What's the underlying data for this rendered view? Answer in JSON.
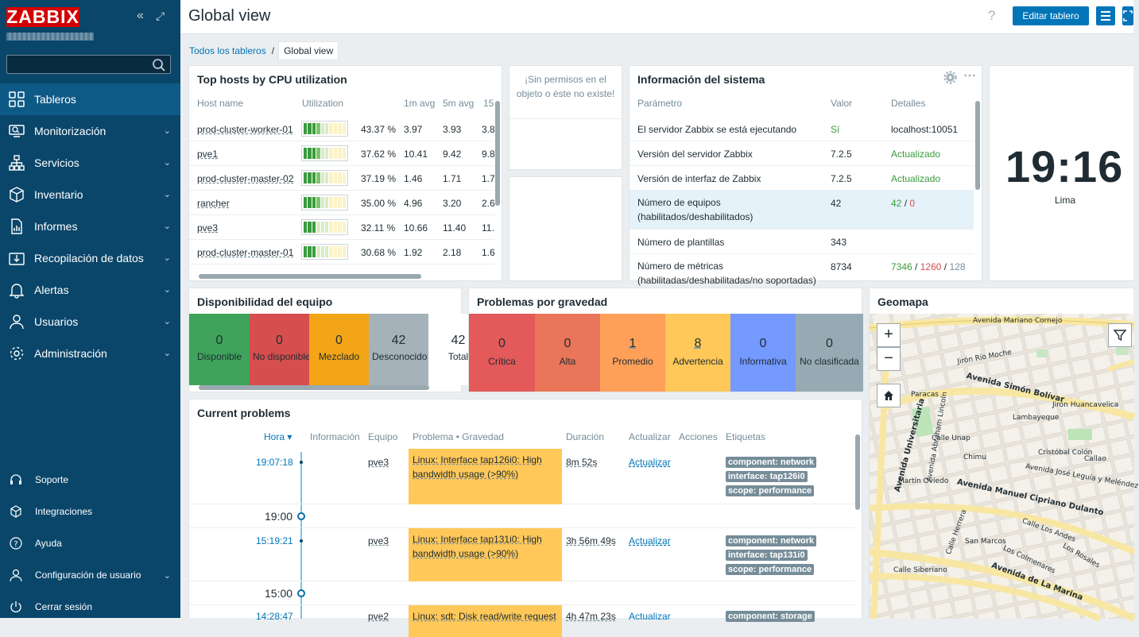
{
  "app": {
    "logo": "ZABBIX"
  },
  "sidebar": {
    "search": {
      "placeholder": ""
    },
    "menu": [
      {
        "label": "Tableros",
        "icon": "dashboard-icon",
        "active": true
      },
      {
        "label": "Monitorización",
        "icon": "monitoring-icon"
      },
      {
        "label": "Servicios",
        "icon": "services-icon"
      },
      {
        "label": "Inventario",
        "icon": "inventory-icon"
      },
      {
        "label": "Informes",
        "icon": "reports-icon"
      },
      {
        "label": "Recopilación de datos",
        "icon": "data-collection-icon"
      },
      {
        "label": "Alertas",
        "icon": "bell-icon"
      },
      {
        "label": "Usuarios",
        "icon": "users-icon"
      },
      {
        "label": "Administración",
        "icon": "gear-icon"
      }
    ],
    "bottom": [
      {
        "label": "Soporte",
        "icon": "headset-icon"
      },
      {
        "label": "Integraciones",
        "icon": "integrations-icon"
      },
      {
        "label": "Ayuda",
        "icon": "help-icon"
      },
      {
        "label": "Configuración de usuario",
        "icon": "user-icon"
      },
      {
        "label": "Cerrar sesión",
        "icon": "power-icon"
      }
    ]
  },
  "header": {
    "title": "Global view",
    "help": "?",
    "edit_button": "Editar tablero"
  },
  "breadcrumb": {
    "parent": "Todos los tableros",
    "separator": "/",
    "current": "Global view"
  },
  "top_hosts": {
    "title": "Top hosts by CPU utilization",
    "columns": [
      "Host name",
      "Utilization",
      "1m avg",
      "5m avg",
      "15"
    ],
    "rows": [
      {
        "host": "prod-cluster-worker-01",
        "util": "43.37 %",
        "util_value": 43.37,
        "avg1": "3.97",
        "avg5": "3.93",
        "avg15": "3.8"
      },
      {
        "host": "pve1",
        "util": "37.62 %",
        "util_value": 37.62,
        "avg1": "10.41",
        "avg5": "9.42",
        "avg15": "9.8"
      },
      {
        "host": "prod-cluster-master-02",
        "util": "37.19 %",
        "util_value": 37.19,
        "avg1": "1.46",
        "avg5": "1.71",
        "avg15": "1.7"
      },
      {
        "host": "rancher",
        "util": "35.00 %",
        "util_value": 35.0,
        "avg1": "4.96",
        "avg5": "3.20",
        "avg15": "2.6"
      },
      {
        "host": "pve3",
        "util": "32.11 %",
        "util_value": 32.11,
        "avg1": "10.66",
        "avg5": "11.40",
        "avg15": "11."
      },
      {
        "host": "prod-cluster-master-01",
        "util": "30.68 %",
        "util_value": 30.68,
        "avg1": "1.92",
        "avg5": "2.18",
        "avg15": "1.6"
      }
    ]
  },
  "no_permission": {
    "message": "¡Sin permisos en el objeto o éste no existe!"
  },
  "system_info": {
    "title": "Información del sistema",
    "columns": [
      "Parámetro",
      "Valor",
      "Detalles"
    ],
    "rows": [
      {
        "param": "El servidor Zabbix se está ejecutando",
        "value": "Sí",
        "details": "localhost:10051"
      },
      {
        "param": "Versión del servidor Zabbix",
        "value": "7.2.5",
        "details": "Actualizado"
      },
      {
        "param": "Versión de interfaz de Zabbix",
        "value": "7.2.5",
        "details": "Actualizado"
      },
      {
        "param": "Número de equipos (habilitados/deshabilitados)",
        "value": "42",
        "d1": "42",
        "dsep": "/",
        "d2": "0"
      },
      {
        "param": "Número de plantillas",
        "value": "343"
      },
      {
        "param": "Número de métricas (habilitadas/deshabilitadas/no soportadas)",
        "value": "8734",
        "d1": "7346",
        "dsep": "/",
        "d2": "1260",
        "dsep2": "/",
        "d3": "128"
      }
    ]
  },
  "clock": {
    "time": "19:16",
    "zone": "Lima"
  },
  "availability": {
    "title": "Disponibilidad del equipo",
    "items": [
      {
        "num": "0",
        "label": "Disponible",
        "color": "#3fa35b"
      },
      {
        "num": "0",
        "label": "No disponible",
        "color": "#d64e4e"
      },
      {
        "num": "0",
        "label": "Mezclado",
        "color": "#f2a516"
      },
      {
        "num": "42",
        "label": "Desconocido",
        "color": "#a5b2ba"
      },
      {
        "num": "42",
        "label": "Total",
        "color": "#ffffff"
      }
    ]
  },
  "severity": {
    "title": "Problemas por gravedad",
    "items": [
      {
        "num": "0",
        "label": "Crítica",
        "color": "#e45959"
      },
      {
        "num": "0",
        "label": "Alta",
        "color": "#e97659"
      },
      {
        "num": "1",
        "label": "Promedio",
        "color": "#ffa059"
      },
      {
        "num": "8",
        "label": "Advertencia",
        "color": "#ffc859"
      },
      {
        "num": "0",
        "label": "Informativa",
        "color": "#7499ff"
      },
      {
        "num": "0",
        "label": "No clasificada",
        "color": "#97aab3"
      }
    ]
  },
  "geomap": {
    "title": "Geomapa",
    "zoom_in": "+",
    "zoom_out": "−",
    "labels": [
      "Avenida Mariano Cornejo",
      "Avenida Simón Bolívar",
      "Avenida José Leguía y Meléndez",
      "Avenida Manuel Cipriano Dulanto",
      "Avenida de La Marina",
      "Jirón Río Moche",
      "Jirón Huancavelica",
      "Calle Unap",
      "Chimu",
      "Cristóbal Colón",
      "Avenida Universitaria",
      "Avenida Abraham Lincoln",
      "Paracas",
      "Lambayeque",
      "Callao",
      "Martín Oviedo",
      "Calle Herrera",
      "Calle Los Andes",
      "San Marcos",
      "Los Colmenares",
      "Los Rosales",
      "Calle Siberiano"
    ]
  },
  "problems": {
    "title": "Current problems",
    "columns": {
      "time": "Hora ▾",
      "info": "Información",
      "host": "Equipo",
      "problem": "Problema • Gravedad",
      "duration": "Duración",
      "update": "Actualizar",
      "actions": "Acciones",
      "tags": "Etiquetas"
    },
    "rows": [
      {
        "time": "19:07:18",
        "host": "pve3",
        "problem": "Linux: Interface tap126i0: High bandwidth usage (>90%)",
        "duration": "8m 52s",
        "update": "Actualizar",
        "tags": [
          "component: network",
          "interface: tap126i0",
          "scope: performance"
        ]
      },
      {
        "time": "15:19:21",
        "host": "pve3",
        "problem": "Linux: Interface tap131i0: High bandwidth usage (>90%)",
        "duration": "3h 56m 49s",
        "update": "Actualizar",
        "tags": [
          "component: network",
          "interface: tap131i0",
          "scope: performance"
        ]
      },
      {
        "time": "14:28:47",
        "host": "pve2",
        "problem": "Linux: sdt: Disk read/write request",
        "duration": "4h 47m 23s",
        "update": "Actualizar",
        "tags": [
          "component: storage"
        ]
      }
    ],
    "markers": [
      "19:00",
      "15:00"
    ]
  }
}
